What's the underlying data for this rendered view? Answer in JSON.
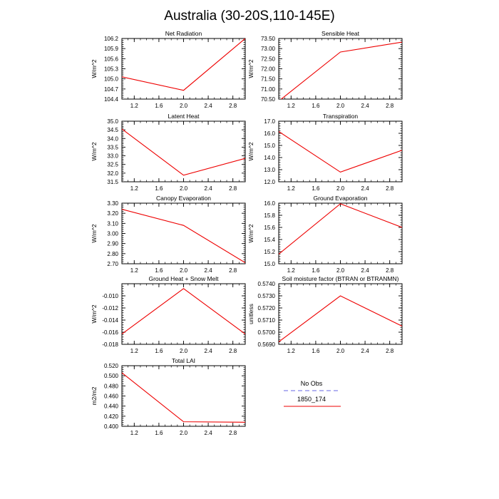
{
  "figure": {
    "title": "Australia (30-20S,110-145E)"
  },
  "legend": {
    "entries": [
      {
        "name": "No Obs",
        "color": "#9999ee",
        "dashed": true
      },
      {
        "name": "1850_174",
        "color": "#ee0000",
        "dashed": false
      }
    ]
  },
  "chart_data": [
    {
      "type": "line",
      "title": "Net Radiation",
      "ylabel": "W/m^2",
      "xlim": [
        1.0,
        3.0
      ],
      "ylim": [
        104.4,
        106.2
      ],
      "xticks": [
        "1.2",
        "1.6",
        "2.0",
        "2.4",
        "2.8"
      ],
      "yticks": [
        "104.4",
        "104.7",
        "105.0",
        "105.3",
        "105.6",
        "105.9",
        "106.2"
      ],
      "series": [
        {
          "name": "1850_174",
          "x": [
            1.0,
            2.0,
            3.0
          ],
          "y": [
            105.06,
            104.66,
            106.2
          ]
        }
      ]
    },
    {
      "type": "line",
      "title": "Sensible Heat",
      "ylabel": "W/m^2",
      "xlim": [
        1.0,
        3.0
      ],
      "ylim": [
        70.5,
        73.5
      ],
      "xticks": [
        "1.2",
        "1.6",
        "2.0",
        "2.4",
        "2.8"
      ],
      "yticks": [
        "70.50",
        "71.00",
        "71.50",
        "72.00",
        "72.50",
        "73.00",
        "73.50"
      ],
      "series": [
        {
          "name": "1850_174",
          "x": [
            1.0,
            2.0,
            3.0
          ],
          "y": [
            70.4,
            72.83,
            73.32
          ]
        }
      ]
    },
    {
      "type": "line",
      "title": "Latent Heat",
      "ylabel": "W/m^2",
      "xlim": [
        1.0,
        3.0
      ],
      "ylim": [
        31.5,
        35.0
      ],
      "xticks": [
        "1.2",
        "1.6",
        "2.0",
        "2.4",
        "2.8"
      ],
      "yticks": [
        "31.5",
        "32.0",
        "32.5",
        "33.0",
        "33.5",
        "34.0",
        "34.5",
        "35.0"
      ],
      "series": [
        {
          "name": "1850_174",
          "x": [
            1.0,
            2.0,
            3.0
          ],
          "y": [
            34.55,
            31.88,
            32.85
          ]
        }
      ]
    },
    {
      "type": "line",
      "title": "Transpiration",
      "ylabel": "W/m^2",
      "xlim": [
        1.0,
        3.0
      ],
      "ylim": [
        12.0,
        17.0
      ],
      "xticks": [
        "1.2",
        "1.6",
        "2.0",
        "2.4",
        "2.8"
      ],
      "yticks": [
        "12.0",
        "13.0",
        "14.0",
        "15.0",
        "16.0",
        "17.0"
      ],
      "series": [
        {
          "name": "1850_174",
          "x": [
            1.0,
            2.0,
            3.0
          ],
          "y": [
            16.15,
            12.8,
            14.6
          ]
        }
      ]
    },
    {
      "type": "line",
      "title": "Canopy Evaporation",
      "ylabel": "W/m^2",
      "xlim": [
        1.0,
        3.0
      ],
      "ylim": [
        2.7,
        3.3
      ],
      "xticks": [
        "1.2",
        "1.6",
        "2.0",
        "2.4",
        "2.8"
      ],
      "yticks": [
        "2.70",
        "2.80",
        "2.90",
        "3.00",
        "3.10",
        "3.20",
        "3.30"
      ],
      "series": [
        {
          "name": "1850_174",
          "x": [
            1.0,
            2.0,
            3.0
          ],
          "y": [
            3.24,
            3.08,
            2.71
          ]
        }
      ]
    },
    {
      "type": "line",
      "title": "Ground Evaporation",
      "ylabel": "W/m^2",
      "xlim": [
        1.0,
        3.0
      ],
      "ylim": [
        15.0,
        16.0
      ],
      "xticks": [
        "1.2",
        "1.6",
        "2.0",
        "2.4",
        "2.8"
      ],
      "yticks": [
        "15.0",
        "15.2",
        "15.4",
        "15.6",
        "15.8",
        "16.0"
      ],
      "series": [
        {
          "name": "1850_174",
          "x": [
            1.0,
            2.0,
            3.0
          ],
          "y": [
            15.16,
            15.99,
            15.6
          ]
        }
      ]
    },
    {
      "type": "line",
      "title": "Ground Heat + Snow Melt",
      "ylabel": "W/m^2",
      "xlim": [
        1.0,
        3.0
      ],
      "ylim": [
        -0.018,
        -0.008
      ],
      "xticks": [
        "1.2",
        "1.6",
        "2.0",
        "2.4",
        "2.8"
      ],
      "yticks": [
        "-0.018",
        "-0.016",
        "-0.014",
        "-0.012",
        "-0.010"
      ],
      "series": [
        {
          "name": "1850_174",
          "x": [
            1.0,
            2.0,
            3.0
          ],
          "y": [
            -0.0163,
            -0.0088,
            -0.0163
          ]
        }
      ]
    },
    {
      "type": "line",
      "title": "Soil moisture factor (BTRAN or BTRANMN)",
      "ylabel": "unitless",
      "xlim": [
        1.0,
        3.0
      ],
      "ylim": [
        0.569,
        0.574
      ],
      "xticks": [
        "1.2",
        "1.6",
        "2.0",
        "2.4",
        "2.8"
      ],
      "yticks": [
        "0.5690",
        "0.5700",
        "0.5710",
        "0.5720",
        "0.5730",
        "0.5740"
      ],
      "series": [
        {
          "name": "1850_174",
          "x": [
            1.0,
            2.0,
            3.0
          ],
          "y": [
            0.5692,
            0.573,
            0.5705
          ]
        }
      ]
    },
    {
      "type": "line",
      "title": "Total LAI",
      "ylabel": "m2/m2",
      "xlim": [
        1.0,
        3.0
      ],
      "ylim": [
        0.4,
        0.52
      ],
      "xticks": [
        "1.2",
        "1.6",
        "2.0",
        "2.4",
        "2.8"
      ],
      "yticks": [
        "0.400",
        "0.420",
        "0.440",
        "0.460",
        "0.480",
        "0.500",
        "0.520"
      ],
      "series": [
        {
          "name": "1850_174",
          "x": [
            1.0,
            2.0,
            3.0
          ],
          "y": [
            0.506,
            0.409,
            0.408
          ]
        }
      ]
    }
  ]
}
